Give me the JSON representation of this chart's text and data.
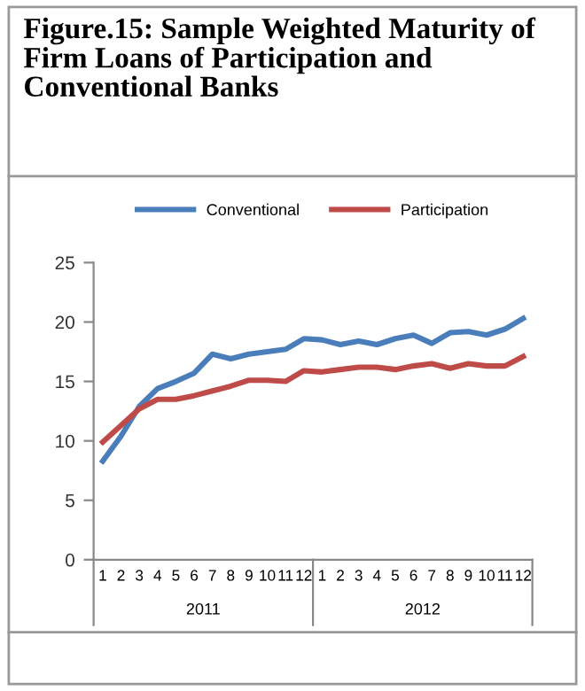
{
  "chart_data": {
    "type": "line",
    "title": "Figure.15: Sample Weighted Maturity of Firm Loans of Participation and Conventional Banks",
    "categories": [
      "1",
      "2",
      "3",
      "4",
      "5",
      "6",
      "7",
      "8",
      "9",
      "10",
      "11",
      "12",
      "1",
      "2",
      "3",
      "4",
      "5",
      "6",
      "7",
      "8",
      "9",
      "10",
      "11",
      "12"
    ],
    "series": [
      {
        "name": "Conventional",
        "color": "#4a7ebb",
        "values": [
          8.3,
          10.4,
          12.9,
          14.4,
          15.0,
          15.7,
          17.3,
          16.9,
          17.3,
          17.5,
          17.7,
          18.6,
          18.5,
          18.1,
          18.4,
          18.1,
          18.6,
          18.9,
          18.2,
          19.1,
          19.2,
          18.9,
          19.4,
          20.3
        ]
      },
      {
        "name": "Participation",
        "color": "#be4b48",
        "values": [
          9.9,
          11.3,
          12.7,
          13.5,
          13.5,
          13.8,
          14.2,
          14.6,
          15.1,
          15.1,
          15.0,
          15.9,
          15.8,
          16.0,
          16.2,
          16.2,
          16.0,
          16.3,
          16.5,
          16.1,
          16.5,
          16.3,
          16.3,
          17.1
        ]
      }
    ],
    "annotations": [
      "2011",
      "2012"
    ],
    "ylim": [
      0,
      25
    ],
    "yticks": [
      0,
      5,
      10,
      15,
      20,
      25
    ],
    "grid": false,
    "legend": "top",
    "marker": "none",
    "line_style": "solid"
  }
}
